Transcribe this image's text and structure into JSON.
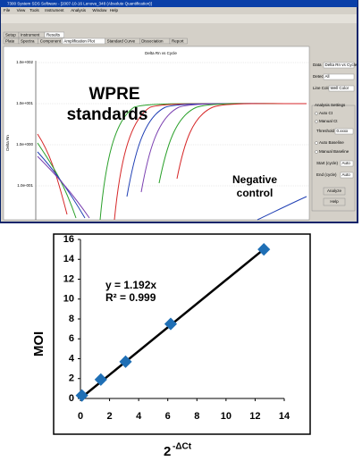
{
  "screenshot": {
    "window_title": "7300 System SDS Software - [2007-10-16 Lenova_348 (Absolute Quantification)]",
    "menu": [
      "File",
      "View",
      "Tools",
      "Instrument",
      "Analysis",
      "Window",
      "Help"
    ],
    "top_tabs": [
      "Setup",
      "Instrument",
      "Results"
    ],
    "sub_tabs": [
      "Plate",
      "Spectra",
      "Component",
      "Amplification Plot",
      "Standard Curve",
      "Dissociation",
      "Report"
    ],
    "plot_title": "Delta Rn vs Cycle",
    "plot_ylabel": "Delta Rn",
    "plot_yticks": [
      "1.0e+002",
      "1.0e+001",
      "1.0e+000",
      "1.0e-001"
    ],
    "panel": {
      "data_label": "Data",
      "data_value": "Delta Rn vs Cycle",
      "detector_label": "Detector",
      "detector_value": "All",
      "line_color_label": "Line Color",
      "line_color_value": "Well Color",
      "analysis_settings": "Analysis Settings",
      "auto_ct": "Auto Ct",
      "manual_ct": "Manual Ct",
      "threshold_label": "Threshold",
      "threshold_value": "0.xxxx",
      "auto_baseline": "Auto Baseline",
      "manual_baseline": "Manual Baseline",
      "start_label": "Start (cycle)",
      "start_value": "Auto",
      "end_label": "End (cycle)",
      "end_value": "Auto",
      "analyze": "Analyze",
      "help": "Help"
    },
    "overlay_standards": [
      "WPRE",
      "standards"
    ],
    "overlay_negative": [
      "Negative",
      "control"
    ]
  },
  "chart_data": {
    "type": "scatter",
    "x": [
      0.1,
      1.4,
      3.1,
      6.2,
      12.6
    ],
    "values": [
      0.3,
      1.9,
      3.7,
      7.5,
      15
    ],
    "color": "#1f6fb5",
    "xlim": [
      0,
      14
    ],
    "xticks": [
      0,
      2,
      4,
      6,
      8,
      10,
      12,
      14
    ],
    "ylim": [
      0,
      16
    ],
    "yticks": [
      0,
      2,
      4,
      6,
      8,
      10,
      12,
      14,
      16
    ],
    "xlabel": {
      "base": "2",
      "exponent": "-ΔCt"
    },
    "ylabel": "MOI",
    "trendline": {
      "slope": 1.192,
      "equation": "y = 1.192x",
      "r2": "R² = 0.999"
    }
  }
}
